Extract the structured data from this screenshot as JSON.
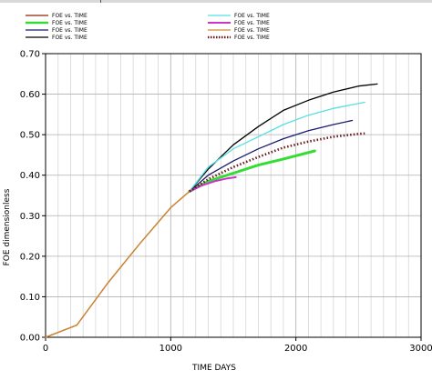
{
  "chart_data": {
    "type": "line",
    "title": "",
    "xlabel": "TIME    DAYS",
    "ylabel": "FOE   dimensionless",
    "xlim": [
      0,
      3000
    ],
    "ylim": [
      0,
      0.7
    ],
    "x_ticks": [
      0,
      1000,
      2000,
      3000
    ],
    "x_tick_labels": [
      "0",
      "1000",
      "2000",
      "3000"
    ],
    "y_ticks": [
      0,
      0.1,
      0.2,
      0.3,
      0.4,
      0.5,
      0.6,
      0.7
    ],
    "y_tick_labels": [
      "0.00",
      "0.10",
      "0.20",
      "0.30",
      "0.40",
      "0.50",
      "0.60",
      "0.70"
    ],
    "grid": true,
    "legend_position": "top",
    "series": [
      {
        "name": "FOE vs. TIME",
        "color": "#8b2500",
        "style": "solid",
        "width": 1.3,
        "x": [
          0,
          250,
          500,
          750,
          1000,
          1150
        ],
        "y": [
          0.0,
          0.03,
          0.135,
          0.23,
          0.32,
          0.36
        ]
      },
      {
        "name": "FOE vs. TIME",
        "color": "#33dd33",
        "style": "solid",
        "width": 3,
        "x": [
          1150,
          1300,
          1500,
          1700,
          1900,
          2150
        ],
        "y": [
          0.36,
          0.385,
          0.405,
          0.425,
          0.44,
          0.46
        ]
      },
      {
        "name": "FOE vs. TIME",
        "color": "#1a1a6e",
        "style": "solid",
        "width": 1.3,
        "x": [
          1150,
          1300,
          1500,
          1700,
          1900,
          2100,
          2300,
          2450
        ],
        "y": [
          0.36,
          0.4,
          0.435,
          0.465,
          0.49,
          0.51,
          0.525,
          0.535
        ]
      },
      {
        "name": "FOE vs. TIME",
        "color": "#000000",
        "style": "solid",
        "width": 1.3,
        "x": [
          1150,
          1300,
          1500,
          1700,
          1900,
          2100,
          2300,
          2500,
          2650
        ],
        "y": [
          0.36,
          0.415,
          0.475,
          0.52,
          0.56,
          0.585,
          0.605,
          0.62,
          0.625
        ]
      },
      {
        "name": "FOE vs. TIME",
        "color": "#55e0e0",
        "style": "solid",
        "width": 1.3,
        "x": [
          1150,
          1300,
          1500,
          1700,
          1900,
          2100,
          2300,
          2550
        ],
        "y": [
          0.36,
          0.42,
          0.465,
          0.495,
          0.525,
          0.548,
          0.565,
          0.58
        ]
      },
      {
        "name": "FOE vs. TIME",
        "color": "#cc33cc",
        "style": "solid",
        "width": 2,
        "x": [
          1150,
          1250,
          1350,
          1450,
          1520
        ],
        "y": [
          0.36,
          0.375,
          0.385,
          0.392,
          0.395
        ]
      },
      {
        "name": "FOE vs. TIME",
        "color": "#d08a30",
        "style": "solid",
        "width": 1.3,
        "x": [
          0,
          250,
          500,
          750,
          1000,
          1150
        ],
        "y": [
          0.0,
          0.03,
          0.135,
          0.23,
          0.32,
          0.36
        ]
      },
      {
        "name": "FOE vs. TIME",
        "color": "#6b1a1a",
        "style": "dotted",
        "width": 2.6,
        "x": [
          1150,
          1300,
          1500,
          1700,
          1900,
          2100,
          2300,
          2500,
          2550
        ],
        "y": [
          0.36,
          0.39,
          0.42,
          0.445,
          0.468,
          0.483,
          0.495,
          0.502,
          0.503
        ]
      }
    ]
  }
}
